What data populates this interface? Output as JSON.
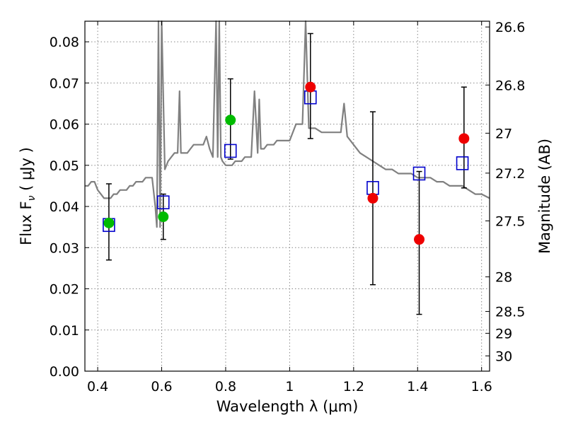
{
  "chart_data": {
    "type": "scatter",
    "title": "",
    "xlabel": "Wavelength  λ (μm)",
    "ylabel": "Flux  F",
    "ylabel_sub": "ν",
    "ylabel_unit": "( μJy )",
    "y2label": "Magnitude (AB)",
    "xlim": [
      0.36,
      1.625
    ],
    "ylim": [
      0.0,
      0.085
    ],
    "grid": true,
    "xticks": [
      0.4,
      0.6,
      0.8,
      1.0,
      1.2,
      1.4,
      1.6
    ],
    "xtick_labels": [
      "0.4",
      "0.6",
      "0.8",
      "1",
      "1.2",
      "1.4",
      "1.6"
    ],
    "yticks": [
      0.0,
      0.01,
      0.02,
      0.03,
      0.04,
      0.05,
      0.06,
      0.07,
      0.08
    ],
    "ytick_labels": [
      "0.00",
      "0.01",
      "0.02",
      "0.03",
      "0.04",
      "0.05",
      "0.06",
      "0.07",
      "0.08"
    ],
    "y2ticks": [
      {
        "label": "26.6",
        "flux": 0.0836
      },
      {
        "label": "26.8",
        "flux": 0.0695
      },
      {
        "label": "27",
        "flux": 0.0578
      },
      {
        "label": "27.2",
        "flux": 0.0481
      },
      {
        "label": "27.5",
        "flux": 0.0365
      },
      {
        "label": "28",
        "flux": 0.0229
      },
      {
        "label": "28.5",
        "flux": 0.0145
      },
      {
        "label": "29",
        "flux": 0.0092
      },
      {
        "label": "30",
        "flux": 0.0037
      }
    ],
    "colors": {
      "template": "#808080",
      "model": "#0000cc",
      "green": "#00bb00",
      "red": "#ee0000",
      "errorbar": "#000000",
      "grid": "#888888"
    },
    "series": [
      {
        "kind": "template_spectrum",
        "x": [
          0.36,
          0.37,
          0.38,
          0.39,
          0.4,
          0.41,
          0.42,
          0.43,
          0.44,
          0.45,
          0.46,
          0.47,
          0.48,
          0.49,
          0.5,
          0.51,
          0.52,
          0.53,
          0.54,
          0.55,
          0.56,
          0.57,
          0.58,
          0.585,
          0.59,
          0.595,
          0.6,
          0.61,
          0.62,
          0.63,
          0.64,
          0.65,
          0.656,
          0.66,
          0.67,
          0.68,
          0.69,
          0.7,
          0.71,
          0.72,
          0.73,
          0.74,
          0.75,
          0.76,
          0.77,
          0.775,
          0.78,
          0.785,
          0.79,
          0.8,
          0.81,
          0.82,
          0.83,
          0.84,
          0.85,
          0.86,
          0.87,
          0.88,
          0.89,
          0.9,
          0.905,
          0.91,
          0.92,
          0.93,
          0.94,
          0.95,
          0.96,
          0.97,
          0.98,
          0.99,
          1.0,
          1.02,
          1.04,
          1.05,
          1.06,
          1.08,
          1.1,
          1.12,
          1.14,
          1.16,
          1.17,
          1.18,
          1.2,
          1.22,
          1.24,
          1.26,
          1.28,
          1.3,
          1.32,
          1.34,
          1.36,
          1.38,
          1.4,
          1.42,
          1.44,
          1.46,
          1.48,
          1.5,
          1.52,
          1.54,
          1.56,
          1.58,
          1.6,
          1.625
        ],
        "y": [
          0.045,
          0.045,
          0.046,
          0.046,
          0.044,
          0.043,
          0.042,
          0.042,
          0.042,
          0.043,
          0.043,
          0.044,
          0.044,
          0.044,
          0.045,
          0.045,
          0.046,
          0.046,
          0.046,
          0.047,
          0.047,
          0.047,
          0.04,
          0.035,
          0.085,
          0.035,
          0.085,
          0.049,
          0.051,
          0.052,
          0.053,
          0.053,
          0.068,
          0.053,
          0.053,
          0.053,
          0.054,
          0.055,
          0.055,
          0.055,
          0.055,
          0.057,
          0.054,
          0.052,
          0.085,
          0.052,
          0.085,
          0.052,
          0.051,
          0.05,
          0.05,
          0.05,
          0.051,
          0.051,
          0.051,
          0.052,
          0.052,
          0.052,
          0.068,
          0.053,
          0.066,
          0.054,
          0.054,
          0.055,
          0.055,
          0.055,
          0.056,
          0.056,
          0.056,
          0.056,
          0.056,
          0.06,
          0.06,
          0.085,
          0.059,
          0.059,
          0.058,
          0.058,
          0.058,
          0.058,
          0.065,
          0.057,
          0.055,
          0.053,
          0.052,
          0.051,
          0.05,
          0.049,
          0.049,
          0.048,
          0.048,
          0.048,
          0.047,
          0.047,
          0.047,
          0.046,
          0.046,
          0.045,
          0.045,
          0.045,
          0.044,
          0.043,
          0.043,
          0.042
        ]
      },
      {
        "kind": "model_boxes",
        "x": [
          0.435,
          0.605,
          0.815,
          1.065,
          1.26,
          1.405,
          1.54
        ],
        "y": [
          0.0355,
          0.041,
          0.0535,
          0.0665,
          0.0445,
          0.048,
          0.0505
        ]
      },
      {
        "kind": "observed_points",
        "x": [
          0.435,
          0.605,
          0.815,
          1.065,
          1.26,
          1.405,
          1.545
        ],
        "y": [
          0.036,
          0.0375,
          0.061,
          0.069,
          0.042,
          0.032,
          0.0565
        ],
        "yerr_low": [
          0.027,
          0.032,
          0.0515,
          0.0565,
          0.021,
          0.0138,
          0.0445
        ],
        "yerr_high": [
          0.0455,
          0.043,
          0.071,
          0.082,
          0.063,
          0.0485,
          0.069
        ],
        "point_colors": [
          "green",
          "green",
          "green",
          "red",
          "red",
          "red",
          "red"
        ]
      }
    ]
  }
}
